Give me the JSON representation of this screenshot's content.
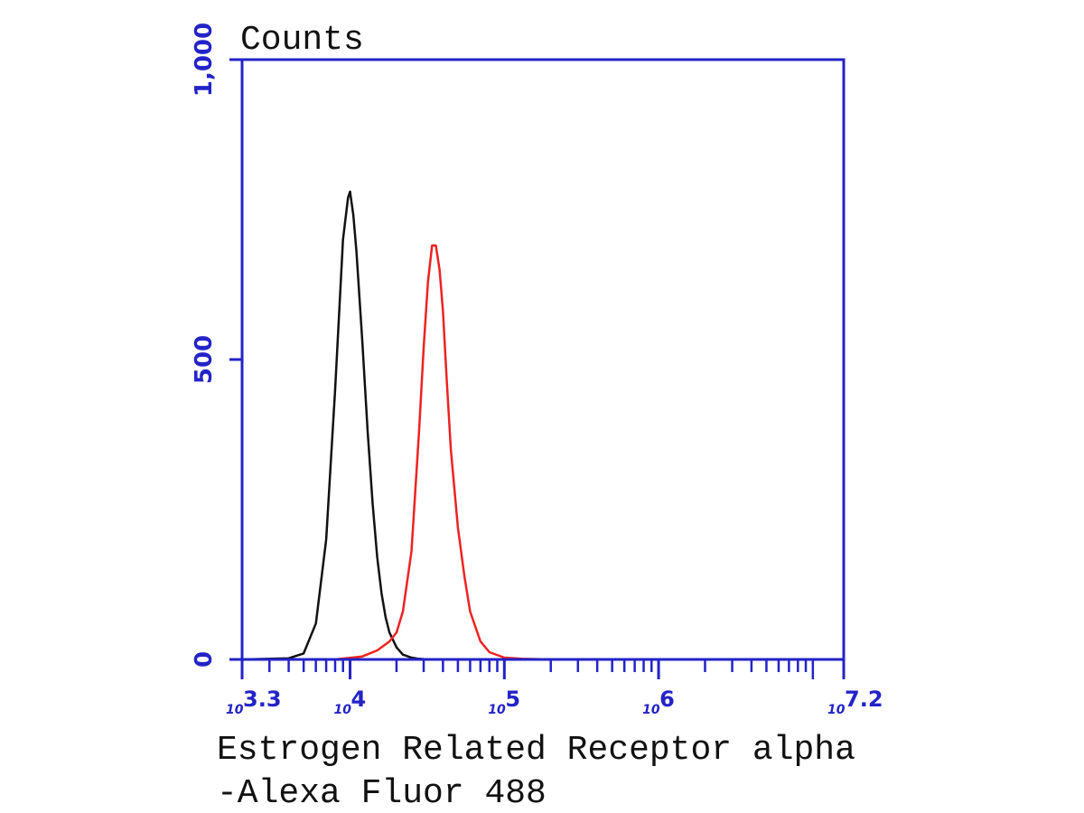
{
  "chart_data": {
    "type": "line",
    "ylabel": "Counts",
    "xlabel_lines": [
      "Estrogen Related Receptor alpha",
      "-Alexa Fluor 488"
    ],
    "xscale": "log",
    "xlim": [
      1995,
      15849000
    ],
    "ylim": [
      0,
      1000
    ],
    "y_ticks": [
      {
        "value": 0,
        "label": "0"
      },
      {
        "value": 500,
        "label": "500"
      },
      {
        "value": 1000,
        "label": "1,000"
      }
    ],
    "x_ticks": [
      {
        "value": 1995,
        "base": "10",
        "exp": "3.3"
      },
      {
        "value": 10000,
        "base": "10",
        "exp": "4"
      },
      {
        "value": 100000,
        "base": "10",
        "exp": "5"
      },
      {
        "value": 1000000,
        "base": "10",
        "exp": "6"
      },
      {
        "value": 15849000,
        "base": "10",
        "exp": "7.2"
      }
    ],
    "grid": false,
    "series": [
      {
        "color": "#111111",
        "x": [
          2000,
          4000,
          5000,
          6000,
          7000,
          8000,
          9000,
          9700,
          10000,
          10500,
          11000,
          12000,
          13000,
          14000,
          15000,
          16000,
          17000,
          18000,
          20000,
          22000,
          25000,
          28000,
          32000,
          40000,
          50000
        ],
        "y": [
          0,
          2,
          10,
          60,
          200,
          450,
          700,
          770,
          780,
          740,
          680,
          530,
          380,
          260,
          170,
          110,
          70,
          45,
          20,
          8,
          3,
          1,
          0,
          0,
          0
        ]
      },
      {
        "color": "#ee2222",
        "x": [
          2000,
          8000,
          12000,
          15000,
          18000,
          20000,
          22000,
          25000,
          28000,
          30000,
          32000,
          34000,
          36000,
          38000,
          40000,
          42000,
          45000,
          50000,
          55000,
          60000,
          70000,
          80000,
          100000,
          130000,
          200000
        ],
        "y": [
          0,
          0,
          5,
          15,
          30,
          45,
          80,
          180,
          380,
          520,
          630,
          690,
          690,
          650,
          580,
          480,
          350,
          220,
          140,
          80,
          30,
          12,
          3,
          1,
          0
        ]
      }
    ]
  }
}
